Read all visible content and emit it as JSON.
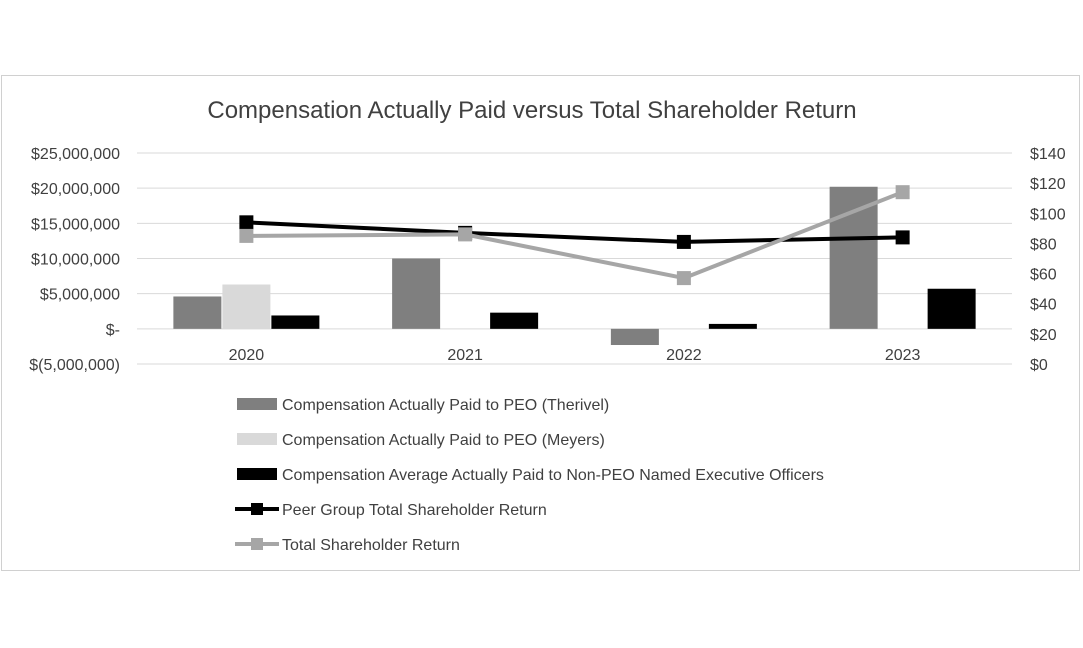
{
  "chart_data": {
    "type": "bar",
    "title": "Compensation Actually Paid versus Total Shareholder Return",
    "categories": [
      "2020",
      "2021",
      "2022",
      "2023"
    ],
    "y_left": {
      "ticks": [
        -5000000,
        0,
        5000000,
        10000000,
        15000000,
        20000000,
        25000000
      ],
      "tick_labels": [
        "$(5,000,000)",
        "$-",
        "$5,000,000",
        "$10,000,000",
        "$15,000,000",
        "$20,000,000",
        "$25,000,000"
      ],
      "ylim": [
        -5000000,
        25000000
      ]
    },
    "y_right": {
      "ticks": [
        0,
        20,
        40,
        60,
        80,
        100,
        120,
        140
      ],
      "tick_labels": [
        "$0",
        "$20",
        "$40",
        "$60",
        "$80",
        "$100",
        "$120",
        "$140"
      ],
      "ylim": [
        0,
        140
      ]
    },
    "grid": true,
    "legend_position": "bottom",
    "bar_series": [
      {
        "name": "Compensation Actually Paid to PEO (Therivel)",
        "color": "#7f7f7f",
        "values": [
          4600000,
          10000000,
          -2300000,
          20200000
        ]
      },
      {
        "name": "Compensation Actually Paid to PEO (Meyers)",
        "color": "#d9d9d9",
        "values": [
          6300000,
          null,
          null,
          null
        ]
      },
      {
        "name": "Compensation Average Actually Paid to Non-PEO Named Executive Officers",
        "color": "#000000",
        "values": [
          1900000,
          2300000,
          700000,
          5700000
        ]
      }
    ],
    "line_series": [
      {
        "name": "Peer Group Total Shareholder Return",
        "color": "#000000",
        "values": [
          94,
          87,
          81,
          84
        ]
      },
      {
        "name": "Total Shareholder Return",
        "color": "#a6a6a6",
        "values": [
          85,
          86,
          57,
          114
        ]
      }
    ]
  }
}
